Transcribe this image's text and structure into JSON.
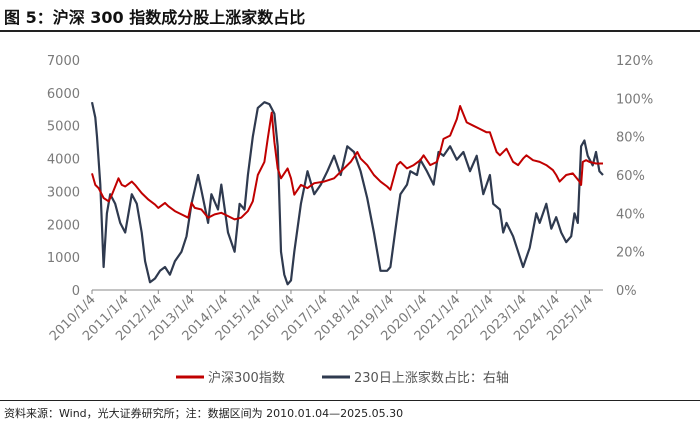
{
  "title": "图 5：沪深 300 指数成分股上涨家数占比",
  "source": "资料来源：Wind，光大证券研究所；注：数据区间为 2010.01.04—2025.05.30",
  "colors": {
    "hs300": "#c00000",
    "up_ratio": "#2f3a4f"
  },
  "chart_data": {
    "type": "line",
    "x": [
      "2010/1/4",
      "2011/1/4",
      "2012/1/4",
      "2013/1/4",
      "2014/1/4",
      "2015/1/4",
      "2016/1/4",
      "2017/1/4",
      "2018/1/4",
      "2019/1/4",
      "2020/1/4",
      "2021/1/4",
      "2022/1/4",
      "2023/1/4",
      "2024/1/4",
      "2025/1/4"
    ],
    "x_range": [
      2010.0,
      2025.41
    ],
    "ylim_left": [
      0,
      7000
    ],
    "yticks_left": [
      "0",
      "1000",
      "2000",
      "3000",
      "4000",
      "5000",
      "6000",
      "7000"
    ],
    "ylim_right": [
      0,
      1.2
    ],
    "yticks_right": [
      "0%",
      "20%",
      "40%",
      "60%",
      "80%",
      "100%",
      "120%"
    ],
    "grid": false,
    "legend_position": "bottom",
    "series": [
      {
        "name": "沪深300指数",
        "axis": "left",
        "x": [
          2010.0,
          2010.1,
          2010.2,
          2010.35,
          2010.5,
          2010.6,
          2010.8,
          2010.9,
          2011.0,
          2011.2,
          2011.3,
          2011.5,
          2011.7,
          2011.9,
          2012.0,
          2012.2,
          2012.3,
          2012.5,
          2012.7,
          2012.9,
          2013.0,
          2013.1,
          2013.3,
          2013.5,
          2013.7,
          2013.9,
          2014.0,
          2014.3,
          2014.5,
          2014.7,
          2014.85,
          2015.0,
          2015.2,
          2015.3,
          2015.42,
          2015.5,
          2015.6,
          2015.7,
          2015.9,
          2016.0,
          2016.1,
          2016.3,
          2016.5,
          2016.7,
          2017.0,
          2017.3,
          2017.5,
          2017.8,
          2018.0,
          2018.1,
          2018.3,
          2018.5,
          2018.7,
          2018.9,
          2019.0,
          2019.2,
          2019.3,
          2019.5,
          2019.7,
          2019.9,
          2020.0,
          2020.2,
          2020.4,
          2020.5,
          2020.6,
          2020.8,
          2021.0,
          2021.1,
          2021.3,
          2021.5,
          2021.7,
          2021.9,
          2022.0,
          2022.2,
          2022.3,
          2022.5,
          2022.7,
          2022.85,
          2023.0,
          2023.1,
          2023.3,
          2023.5,
          2023.7,
          2023.9,
          2024.0,
          2024.1,
          2024.3,
          2024.5,
          2024.7,
          2024.75,
          2024.8,
          2024.9,
          2025.0,
          2025.2,
          2025.41
        ],
        "values": [
          3550,
          3200,
          3100,
          2800,
          2700,
          2900,
          3400,
          3200,
          3150,
          3300,
          3200,
          2950,
          2750,
          2600,
          2500,
          2650,
          2550,
          2400,
          2300,
          2200,
          2650,
          2500,
          2450,
          2200,
          2300,
          2350,
          2300,
          2150,
          2200,
          2400,
          2700,
          3500,
          3900,
          4600,
          5400,
          4500,
          3700,
          3400,
          3700,
          3400,
          2900,
          3200,
          3100,
          3250,
          3300,
          3400,
          3600,
          3900,
          4200,
          4000,
          3800,
          3500,
          3300,
          3150,
          3050,
          3800,
          3900,
          3700,
          3800,
          3950,
          4100,
          3800,
          3900,
          4200,
          4600,
          4700,
          5200,
          5600,
          5100,
          5000,
          4900,
          4800,
          4800,
          4200,
          4100,
          4300,
          3900,
          3800,
          4000,
          4100,
          3950,
          3900,
          3800,
          3650,
          3500,
          3300,
          3500,
          3550,
          3300,
          3200,
          3900,
          3950,
          3900,
          3850,
          3850
        ]
      },
      {
        "name": "230日上涨家数占比：右轴",
        "axis": "right",
        "x": [
          2010.0,
          2010.1,
          2010.15,
          2010.25,
          2010.35,
          2010.45,
          2010.55,
          2010.7,
          2010.85,
          2011.0,
          2011.2,
          2011.35,
          2011.5,
          2011.6,
          2011.75,
          2011.9,
          2012.05,
          2012.2,
          2012.35,
          2012.5,
          2012.7,
          2012.85,
          2013.0,
          2013.2,
          2013.3,
          2013.5,
          2013.6,
          2013.8,
          2013.9,
          2014.1,
          2014.3,
          2014.45,
          2014.6,
          2014.7,
          2014.85,
          2015.0,
          2015.2,
          2015.35,
          2015.5,
          2015.6,
          2015.7,
          2015.8,
          2015.9,
          2016.0,
          2016.1,
          2016.3,
          2016.5,
          2016.7,
          2016.9,
          2017.1,
          2017.3,
          2017.5,
          2017.7,
          2017.9,
          2018.1,
          2018.3,
          2018.5,
          2018.7,
          2018.9,
          2019.0,
          2019.2,
          2019.3,
          2019.5,
          2019.6,
          2019.8,
          2019.9,
          2020.1,
          2020.3,
          2020.45,
          2020.6,
          2020.8,
          2021.0,
          2021.2,
          2021.4,
          2021.6,
          2021.8,
          2022.0,
          2022.1,
          2022.3,
          2022.4,
          2022.5,
          2022.7,
          2022.85,
          2023.0,
          2023.2,
          2023.4,
          2023.5,
          2023.7,
          2023.85,
          2024.0,
          2024.15,
          2024.3,
          2024.45,
          2024.55,
          2024.65,
          2024.75,
          2024.85,
          2024.95,
          2025.1,
          2025.2,
          2025.3,
          2025.41
        ],
        "values": [
          0.98,
          0.9,
          0.8,
          0.55,
          0.12,
          0.4,
          0.5,
          0.45,
          0.35,
          0.3,
          0.5,
          0.45,
          0.3,
          0.15,
          0.04,
          0.06,
          0.1,
          0.12,
          0.08,
          0.15,
          0.2,
          0.28,
          0.45,
          0.6,
          0.52,
          0.35,
          0.5,
          0.42,
          0.55,
          0.3,
          0.2,
          0.45,
          0.42,
          0.6,
          0.8,
          0.95,
          0.98,
          0.97,
          0.92,
          0.75,
          0.2,
          0.08,
          0.03,
          0.05,
          0.2,
          0.45,
          0.62,
          0.5,
          0.55,
          0.62,
          0.7,
          0.6,
          0.75,
          0.72,
          0.62,
          0.48,
          0.3,
          0.1,
          0.1,
          0.12,
          0.38,
          0.5,
          0.55,
          0.62,
          0.6,
          0.68,
          0.62,
          0.55,
          0.72,
          0.7,
          0.75,
          0.68,
          0.72,
          0.62,
          0.7,
          0.5,
          0.6,
          0.45,
          0.42,
          0.3,
          0.35,
          0.28,
          0.2,
          0.12,
          0.22,
          0.4,
          0.35,
          0.45,
          0.32,
          0.38,
          0.3,
          0.25,
          0.28,
          0.4,
          0.35,
          0.75,
          0.78,
          0.7,
          0.65,
          0.72,
          0.62,
          0.6
        ]
      }
    ]
  }
}
